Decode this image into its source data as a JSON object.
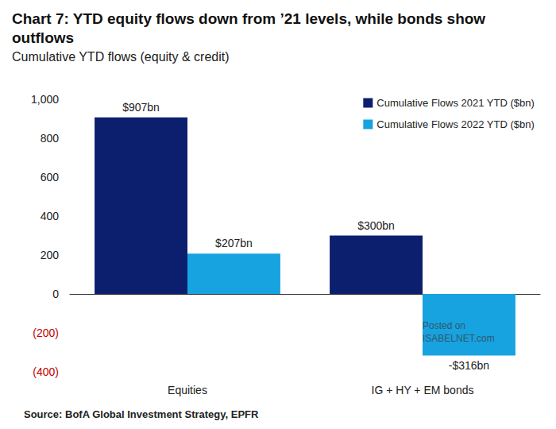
{
  "chart_data": {
    "type": "bar",
    "title": "Chart 7: YTD equity flows down from ’21 levels, while bonds show outflows",
    "subtitle": "Cumulative YTD flows (equity & credit)",
    "source": "Source: BofA Global Investment Strategy, EPFR",
    "watermark": "Posted on ISABELNET.com",
    "categories": [
      "Equities",
      "IG + HY + EM bonds"
    ],
    "series": [
      {
        "name": "Cumulative Flows 2021 YTD ($bn)",
        "color": "#0c1f6e",
        "values": [
          907,
          300
        ],
        "value_labels": [
          "$907bn",
          "$300bn"
        ]
      },
      {
        "name": "Cumulative Flows 2022 YTD ($bn)",
        "color": "#17a2e0",
        "values": [
          207,
          -316
        ],
        "value_labels": [
          "$207bn",
          "-$316bn"
        ]
      }
    ],
    "ylim": [
      -400,
      1000
    ],
    "yticks": [
      {
        "value": -400,
        "label": "(400)"
      },
      {
        "value": -200,
        "label": "(200)"
      },
      0,
      200,
      400,
      600,
      800,
      {
        "value": 1000,
        "label": "1,000"
      }
    ],
    "grid": false,
    "legend": "top-right",
    "data_labels": true
  }
}
